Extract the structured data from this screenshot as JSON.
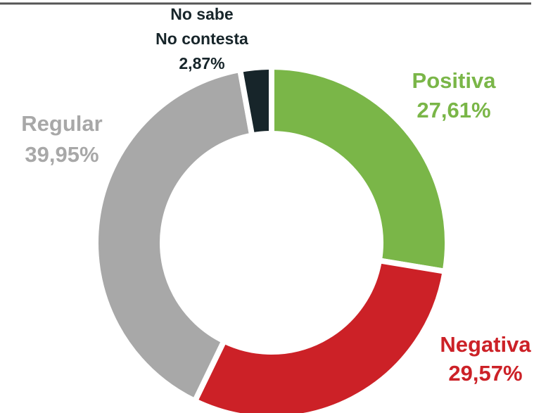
{
  "chart_data": {
    "type": "donut",
    "categories": [
      "Positiva",
      "Negativa",
      "Regular",
      "No sabe\nNo contesta"
    ],
    "values": [
      27.61,
      29.57,
      39.95,
      2.87
    ],
    "value_labels": [
      "27,61%",
      "29,57%",
      "39,95%",
      "2,87%"
    ],
    "colors": [
      "#7ab648",
      "#cc2127",
      "#a8a8a8",
      "#17252a"
    ]
  }
}
